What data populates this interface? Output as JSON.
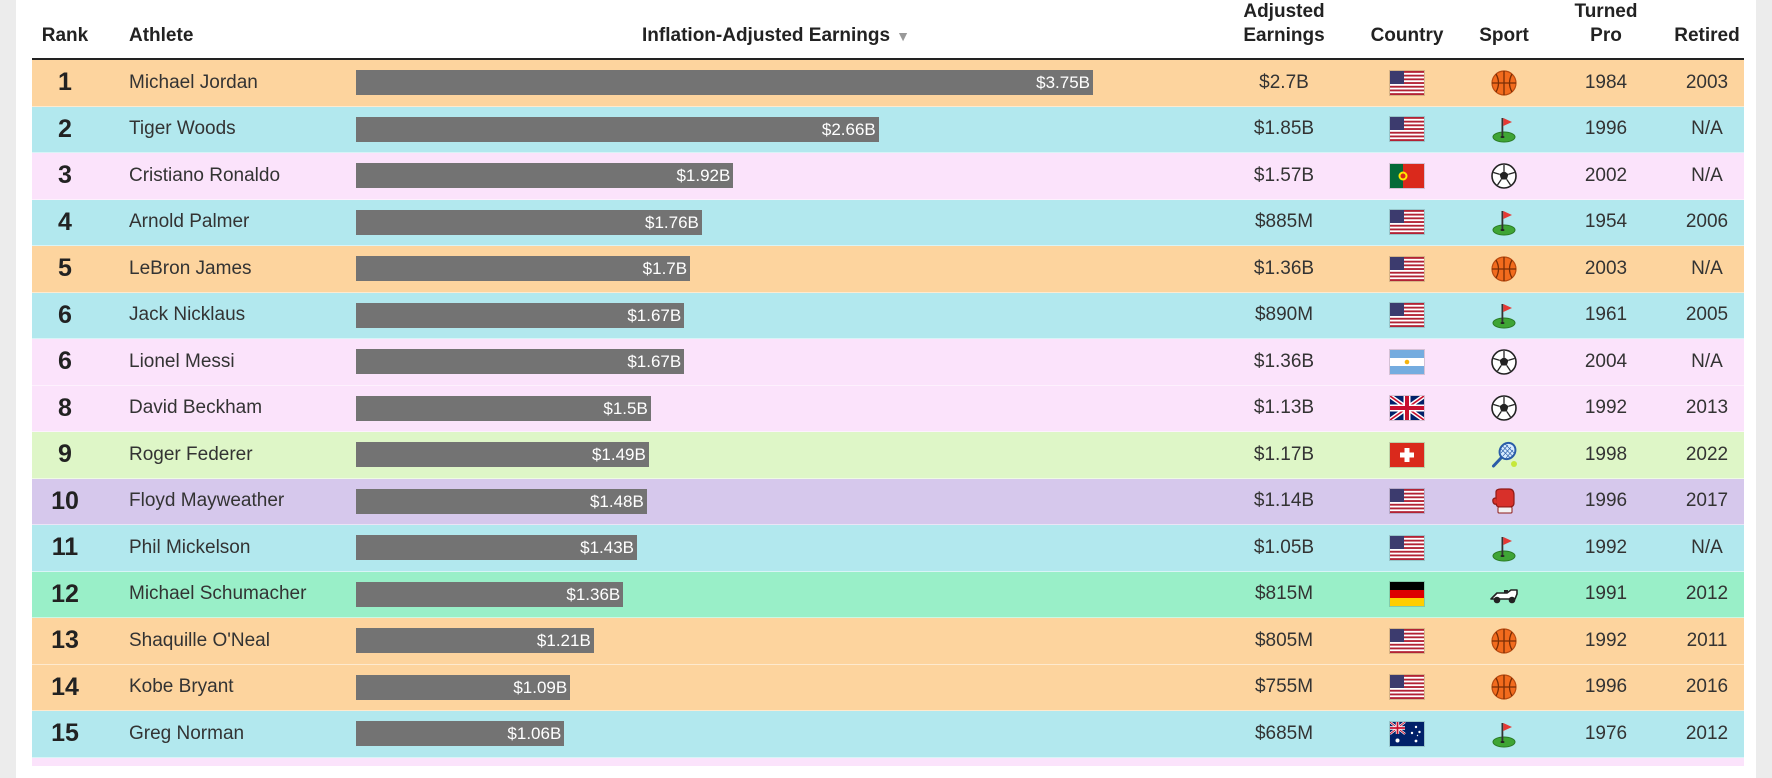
{
  "columns": {
    "rank": "Rank",
    "athlete": "Athlete",
    "earnings": "Inflation-Adjusted Earnings",
    "adjusted_1": "Adjusted",
    "adjusted_2": "Earnings",
    "country": "Country",
    "sport": "Sport",
    "turned_1": "Turned",
    "turned_2": "Pro",
    "retired": "Retired"
  },
  "sort_indicator": "▼",
  "colors": {
    "bar": "#737373",
    "basketball": "#fdd49e",
    "golf": "#b2e8ee",
    "soccer": "#fbe3fb",
    "tennis": "#def6c7",
    "boxing": "#d6c8ec",
    "motorsport": "#99efc8"
  },
  "chart_data": {
    "type": "bar",
    "title": "Inflation-Adjusted Earnings",
    "xlim": [
      0,
      3.75
    ],
    "unit": "billion USD",
    "rows": [
      {
        "rank": "1",
        "athlete": "Michael Jordan",
        "value": 3.75,
        "label": "$3.75B",
        "adjusted": "$2.7B",
        "country": "United States",
        "flag": "us",
        "sport": "basketball",
        "turned_pro": "1984",
        "retired": "2003"
      },
      {
        "rank": "2",
        "athlete": "Tiger Woods",
        "value": 2.66,
        "label": "$2.66B",
        "adjusted": "$1.85B",
        "country": "United States",
        "flag": "us",
        "sport": "golf",
        "turned_pro": "1996",
        "retired": "N/A"
      },
      {
        "rank": "3",
        "athlete": "Cristiano Ronaldo",
        "value": 1.92,
        "label": "$1.92B",
        "adjusted": "$1.57B",
        "country": "Portugal",
        "flag": "pt",
        "sport": "soccer",
        "turned_pro": "2002",
        "retired": "N/A"
      },
      {
        "rank": "4",
        "athlete": "Arnold Palmer",
        "value": 1.76,
        "label": "$1.76B",
        "adjusted": "$885M",
        "country": "United States",
        "flag": "us",
        "sport": "golf",
        "turned_pro": "1954",
        "retired": "2006"
      },
      {
        "rank": "5",
        "athlete": "LeBron James",
        "value": 1.7,
        "label": "$1.7B",
        "adjusted": "$1.36B",
        "country": "United States",
        "flag": "us",
        "sport": "basketball",
        "turned_pro": "2003",
        "retired": "N/A"
      },
      {
        "rank": "6",
        "athlete": "Jack Nicklaus",
        "value": 1.67,
        "label": "$1.67B",
        "adjusted": "$890M",
        "country": "United States",
        "flag": "us",
        "sport": "golf",
        "turned_pro": "1961",
        "retired": "2005"
      },
      {
        "rank": "6",
        "athlete": "Lionel Messi",
        "value": 1.67,
        "label": "$1.67B",
        "adjusted": "$1.36B",
        "country": "Argentina",
        "flag": "ar",
        "sport": "soccer",
        "turned_pro": "2004",
        "retired": "N/A"
      },
      {
        "rank": "8",
        "athlete": "David Beckham",
        "value": 1.5,
        "label": "$1.5B",
        "adjusted": "$1.13B",
        "country": "United Kingdom",
        "flag": "gb",
        "sport": "soccer",
        "turned_pro": "1992",
        "retired": "2013"
      },
      {
        "rank": "9",
        "athlete": "Roger Federer",
        "value": 1.49,
        "label": "$1.49B",
        "adjusted": "$1.17B",
        "country": "Switzerland",
        "flag": "ch",
        "sport": "tennis",
        "turned_pro": "1998",
        "retired": "2022"
      },
      {
        "rank": "10",
        "athlete": "Floyd Mayweather",
        "value": 1.48,
        "label": "$1.48B",
        "adjusted": "$1.14B",
        "country": "United States",
        "flag": "us",
        "sport": "boxing",
        "turned_pro": "1996",
        "retired": "2017"
      },
      {
        "rank": "11",
        "athlete": "Phil Mickelson",
        "value": 1.43,
        "label": "$1.43B",
        "adjusted": "$1.05B",
        "country": "United States",
        "flag": "us",
        "sport": "golf",
        "turned_pro": "1992",
        "retired": "N/A"
      },
      {
        "rank": "12",
        "athlete": "Michael Schumacher",
        "value": 1.36,
        "label": "$1.36B",
        "adjusted": "$815M",
        "country": "Germany",
        "flag": "de",
        "sport": "motorsport",
        "turned_pro": "1991",
        "retired": "2012"
      },
      {
        "rank": "13",
        "athlete": "Shaquille O'Neal",
        "value": 1.21,
        "label": "$1.21B",
        "adjusted": "$805M",
        "country": "United States",
        "flag": "us",
        "sport": "basketball",
        "turned_pro": "1992",
        "retired": "2011"
      },
      {
        "rank": "14",
        "athlete": "Kobe Bryant",
        "value": 1.09,
        "label": "$1.09B",
        "adjusted": "$755M",
        "country": "United States",
        "flag": "us",
        "sport": "basketball",
        "turned_pro": "1996",
        "retired": "2016"
      },
      {
        "rank": "15",
        "athlete": "Greg Norman",
        "value": 1.06,
        "label": "$1.06B",
        "adjusted": "$685M",
        "country": "Australia",
        "flag": "au",
        "sport": "golf",
        "turned_pro": "1976",
        "retired": "2012"
      }
    ]
  }
}
